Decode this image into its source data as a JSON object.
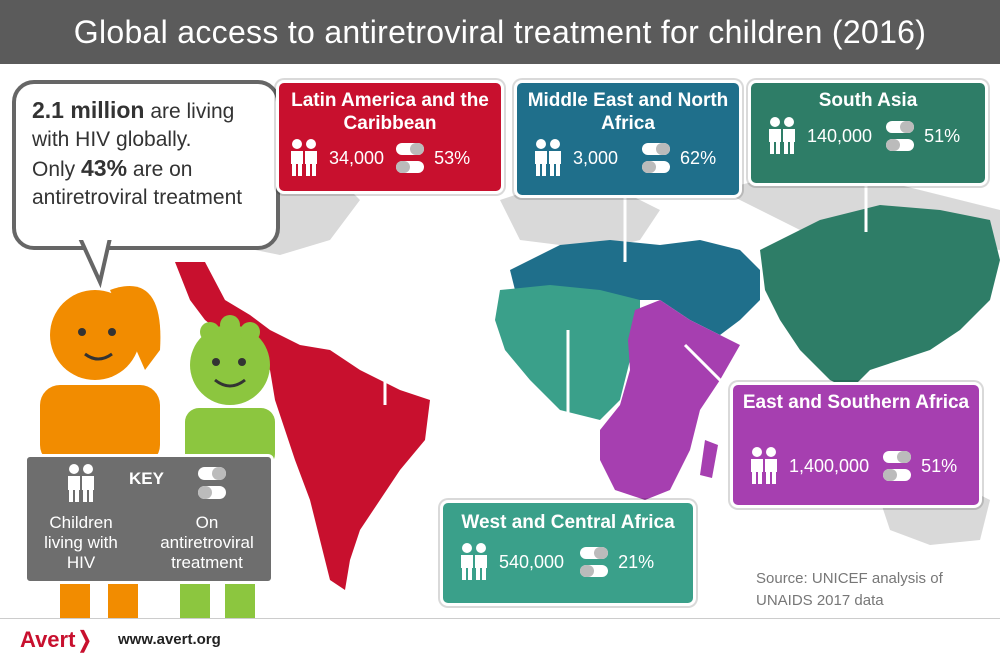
{
  "title": "Global access to antiretroviral treatment for children (2016)",
  "bubble": {
    "line1_bold": "2.1 million",
    "line1_rest": " are living with HIV globally.",
    "line2_pre": "Only ",
    "line2_bold": "43%",
    "line2_rest": " are on antiretroviral treatment"
  },
  "key": {
    "title": "KEY",
    "children_label": "Children living with HIV",
    "treatment_label": "On antiretroviral treatment"
  },
  "regions": [
    {
      "name": "Latin America and the Caribbean",
      "children": "34,000",
      "treatment": "53%",
      "color": "#c8102e"
    },
    {
      "name": "Middle East and North Africa",
      "children": "3,000",
      "treatment": "62%",
      "color": "#1f6f8b"
    },
    {
      "name": "South Asia",
      "children": "140,000",
      "treatment": "51%",
      "color": "#2e7d67"
    },
    {
      "name": "East and Southern Africa",
      "children": "1,400,000",
      "treatment": "51%",
      "color": "#a63fb0"
    },
    {
      "name": "West and Central Africa",
      "children": "540,000",
      "treatment": "21%",
      "color": "#3aa08a"
    }
  ],
  "source": "Source: UNICEF analysis of UNAIDS 2017 data",
  "footer": {
    "logo": "Avert",
    "url": "www.avert.org"
  },
  "colors": {
    "title_bar": "#5b5b5b",
    "map_land": "#d9d9d9",
    "key_board": "#6e6e6e",
    "girl": "#f28c00",
    "boy": "#8cc63f"
  },
  "icons": [
    "people-icon",
    "pills-icon",
    "speech-bubble-icon"
  ]
}
